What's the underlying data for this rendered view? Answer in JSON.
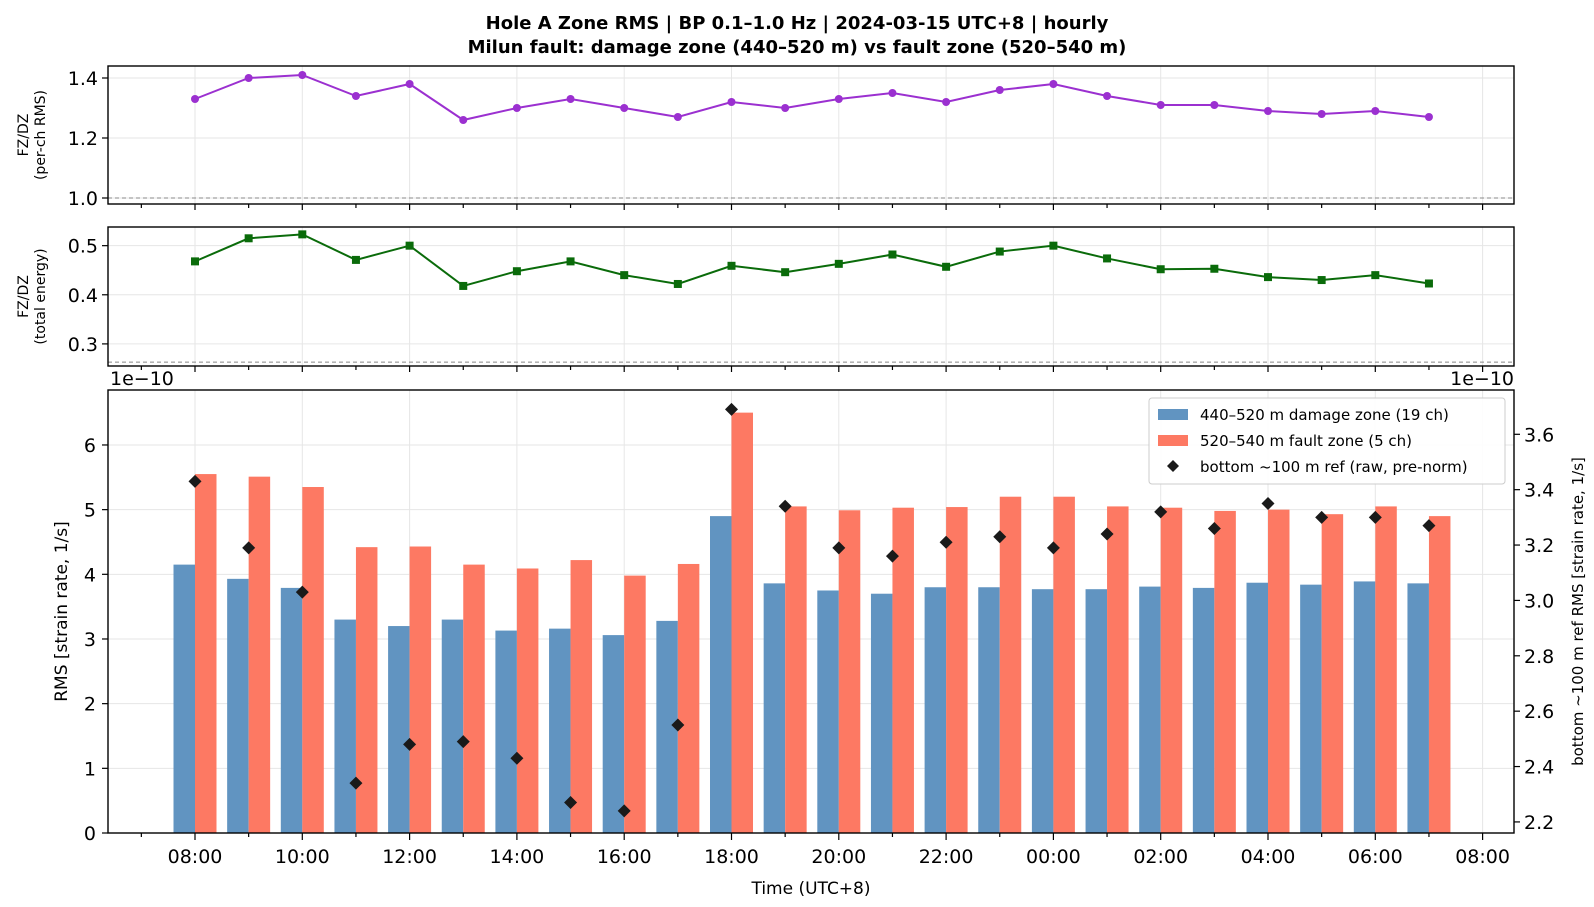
{
  "title": {
    "line1": "Hole A Zone RMS  |  BP 0.1–1.0 Hz  |  2024-03-15 UTC+8  |  hourly",
    "line2": "Milun fault: damage zone (440–520 m) vs fault zone (520–540 m)"
  },
  "chart_data": [
    {
      "type": "line",
      "ylabel": [
        "FZ/DZ",
        "(per-ch RMS)"
      ],
      "ylim": [
        0.98,
        1.44
      ],
      "yticks": [
        "1.0",
        "1.2",
        "1.4"
      ],
      "reference_line": 1.0,
      "color": "#9b30d0",
      "marker": "circle",
      "x": [
        "08:00",
        "09:00",
        "10:00",
        "11:00",
        "12:00",
        "13:00",
        "14:00",
        "15:00",
        "16:00",
        "17:00",
        "18:00",
        "19:00",
        "20:00",
        "21:00",
        "22:00",
        "23:00",
        "00:00",
        "01:00",
        "02:00",
        "03:00",
        "04:00",
        "05:00",
        "06:00",
        "07:00"
      ],
      "values": [
        1.33,
        1.4,
        1.41,
        1.34,
        1.38,
        1.26,
        1.3,
        1.33,
        1.3,
        1.27,
        1.32,
        1.3,
        1.33,
        1.35,
        1.32,
        1.36,
        1.38,
        1.34,
        1.31,
        1.31,
        1.29,
        1.28,
        1.29,
        1.27
      ],
      "grid": true
    },
    {
      "type": "line",
      "ylabel": [
        "FZ/DZ",
        "(total energy)"
      ],
      "ylim": [
        0.255,
        0.538
      ],
      "yticks": [
        "0.3",
        "0.4",
        "0.5"
      ],
      "reference_line": 0.263,
      "color": "#0a6b0a",
      "marker": "square",
      "x": [
        "08:00",
        "09:00",
        "10:00",
        "11:00",
        "12:00",
        "13:00",
        "14:00",
        "15:00",
        "16:00",
        "17:00",
        "18:00",
        "19:00",
        "20:00",
        "21:00",
        "22:00",
        "23:00",
        "00:00",
        "01:00",
        "02:00",
        "03:00",
        "04:00",
        "05:00",
        "06:00",
        "07:00"
      ],
      "values": [
        0.468,
        0.515,
        0.523,
        0.471,
        0.5,
        0.418,
        0.448,
        0.468,
        0.44,
        0.422,
        0.459,
        0.446,
        0.463,
        0.482,
        0.457,
        0.488,
        0.5,
        0.474,
        0.452,
        0.453,
        0.436,
        0.43,
        0.44,
        0.423
      ],
      "grid": true
    },
    {
      "type": "bar",
      "xlabel": "Time (UTC+8)",
      "ylabel": "RMS  [strain rate, 1/s]",
      "ylabel_right": "bottom ~100 m ref RMS  [strain rate, 1/s]",
      "offset_text_left": "1e−10",
      "offset_text_right": "1e−10",
      "ylim": [
        0,
        6.85
      ],
      "ylim_right": [
        2.16,
        3.76
      ],
      "yticks": [
        "0",
        "1",
        "2",
        "3",
        "4",
        "5",
        "6"
      ],
      "yticks_right": [
        "2.2",
        "2.4",
        "2.6",
        "2.8",
        "3.0",
        "3.2",
        "3.4",
        "3.6"
      ],
      "xticks": [
        "08:00",
        "10:00",
        "12:00",
        "14:00",
        "16:00",
        "18:00",
        "20:00",
        "22:00",
        "00:00",
        "02:00",
        "04:00",
        "06:00",
        "08:00"
      ],
      "categories": [
        "08:00",
        "09:00",
        "10:00",
        "11:00",
        "12:00",
        "13:00",
        "14:00",
        "15:00",
        "16:00",
        "17:00",
        "18:00",
        "19:00",
        "20:00",
        "21:00",
        "22:00",
        "23:00",
        "00:00",
        "01:00",
        "02:00",
        "03:00",
        "04:00",
        "05:00",
        "06:00",
        "07:00"
      ],
      "series": [
        {
          "name": "440–520 m  damage zone (19 ch)",
          "color": "#6194c1",
          "axis": "left",
          "values": [
            4.15,
            3.93,
            3.79,
            3.3,
            3.2,
            3.3,
            3.13,
            3.16,
            3.06,
            3.28,
            4.9,
            3.86,
            3.75,
            3.7,
            3.8,
            3.8,
            3.77,
            3.77,
            3.81,
            3.79,
            3.87,
            3.84,
            3.89,
            3.86
          ]
        },
        {
          "name": "520–540 m  fault zone (5 ch)",
          "color": "#fd7963",
          "axis": "left",
          "values": [
            5.55,
            5.51,
            5.35,
            4.42,
            4.43,
            4.15,
            4.09,
            4.22,
            3.98,
            4.16,
            6.5,
            5.05,
            4.99,
            5.03,
            5.04,
            5.2,
            5.2,
            5.05,
            5.03,
            4.98,
            5.0,
            4.93,
            5.05,
            4.9
          ]
        },
        {
          "name": "bottom ~100 m ref (raw, pre-norm)",
          "color": "#1a1a1a",
          "axis": "right",
          "marker": "diamond",
          "values": [
            3.43,
            3.19,
            3.03,
            2.34,
            2.48,
            2.49,
            2.43,
            2.27,
            2.24,
            2.55,
            3.69,
            3.34,
            3.19,
            3.16,
            3.21,
            3.23,
            3.19,
            3.24,
            3.32,
            3.26,
            3.35,
            3.3,
            3.3,
            3.27
          ]
        }
      ],
      "legend": "top-right",
      "grid": true
    }
  ]
}
